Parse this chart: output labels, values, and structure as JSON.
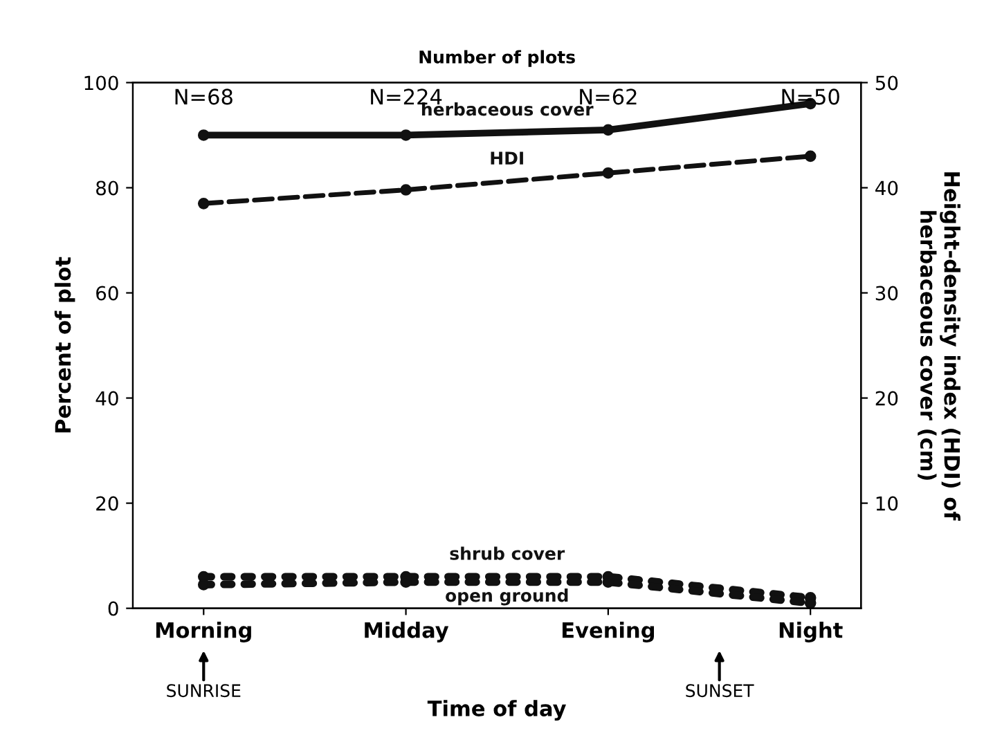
{
  "chart_data": {
    "type": "line",
    "xlabel": "Time of day",
    "ylabel": "Percent of plot",
    "y2label": "Height-density index (HDI) of\nherbaceous cover (cm)",
    "categories": [
      "Morning",
      "Midday",
      "Evening",
      "Night"
    ],
    "series": [
      {
        "name": "herbaceous cover",
        "color": "#111111",
        "values": [
          90,
          90,
          91,
          96
        ],
        "line_style": "solid",
        "marker": "circle"
      },
      {
        "name": "HDI",
        "color": "#111111",
        "values": [
          38.5,
          39.8,
          41.4,
          43
        ],
        "axis": "y2",
        "line_style": "dashed",
        "marker": "circle"
      },
      {
        "name": "shrub cover",
        "color": "#111111",
        "values": [
          6,
          6,
          6,
          2
        ],
        "line_style": "dotted",
        "marker": "circle"
      },
      {
        "name": "open ground",
        "color": "#111111",
        "values": [
          4.5,
          5,
          5,
          1
        ],
        "line_style": "dotted",
        "marker": "circle"
      }
    ],
    "ylim": [
      0,
      100
    ],
    "yticks": [
      0,
      20,
      40,
      60,
      80,
      100
    ],
    "y2lim": [
      0,
      50
    ],
    "y2ticks": [
      10,
      20,
      30,
      40,
      50
    ],
    "grid": false,
    "legend": false,
    "annotations": [
      "Number of plots",
      "N=68",
      "N=224",
      "N=62",
      "N=50",
      "SUNRISE",
      "SUNSET"
    ]
  }
}
